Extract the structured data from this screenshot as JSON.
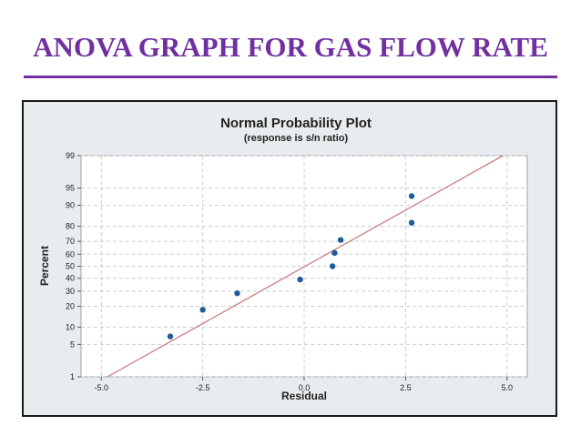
{
  "slide": {
    "title": "ANOVA GRAPH FOR GAS FLOW RATE"
  },
  "colors": {
    "title": "#7030a0",
    "point": "#1f5a9a",
    "fit_line": "#c98080",
    "frame_bg": "#e8ecef"
  },
  "chart_data": {
    "type": "scatter",
    "title": "Normal Probability Plot",
    "subtitle": "(response is s/n ratio)",
    "xlabel": "Residual",
    "ylabel": "Percent",
    "xlim": [
      -5.5,
      5.5
    ],
    "ylim": [
      1,
      99
    ],
    "yscale": "normal-probability",
    "grid": true,
    "x_ticks": [
      -5.0,
      -2.5,
      0.0,
      2.5,
      5.0
    ],
    "x_tick_labels": [
      "-5.0",
      "-2.5",
      "0.0",
      "2.5",
      "5.0"
    ],
    "y_ticks": [
      1,
      5,
      10,
      20,
      30,
      40,
      50,
      60,
      70,
      80,
      90,
      95,
      99
    ],
    "y_tick_labels": [
      "1",
      "5",
      "10",
      "20",
      "30",
      "40",
      "50",
      "60",
      "70",
      "80",
      "90",
      "95",
      "99"
    ],
    "points": [
      {
        "x": -3.3,
        "y": 7
      },
      {
        "x": -2.5,
        "y": 18
      },
      {
        "x": -1.65,
        "y": 28.5
      },
      {
        "x": -0.1,
        "y": 39
      },
      {
        "x": 0.7,
        "y": 50
      },
      {
        "x": 0.75,
        "y": 61
      },
      {
        "x": 0.9,
        "y": 71
      },
      {
        "x": 2.65,
        "y": 82
      },
      {
        "x": 2.65,
        "y": 93
      }
    ],
    "fit_line": [
      {
        "x": -4.85,
        "y": 1
      },
      {
        "x": 4.9,
        "y": 99
      }
    ]
  }
}
